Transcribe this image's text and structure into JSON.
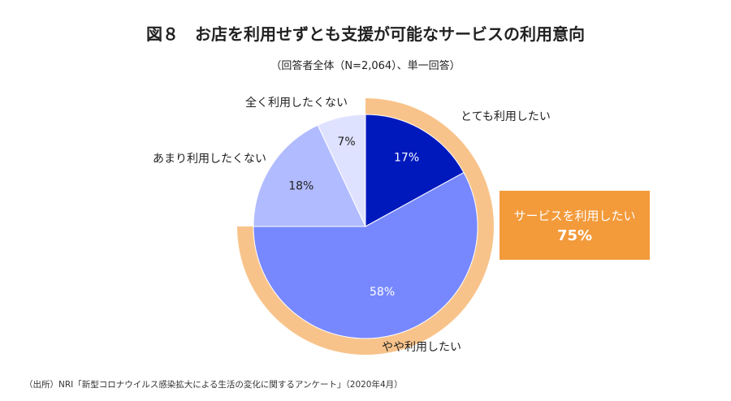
{
  "chart_data": {
    "type": "pie",
    "title": "図８　お店を利用せずとも支援が可能なサービスの利用意向",
    "subtitle": "（回答者全体（N=2,064）、単一回答）",
    "slices": [
      {
        "label": "とても利用したい",
        "value": 17,
        "value_label": "17%",
        "color": "#0019bd",
        "text_color": "#ffffff"
      },
      {
        "label": "やや利用したい",
        "value": 58,
        "value_label": "58%",
        "color": "#7788ff",
        "text_color": "#ffffff"
      },
      {
        "label": "あまり利用したくない",
        "value": 18,
        "value_label": "18%",
        "color": "#b1bbff",
        "text_color": "#222222"
      },
      {
        "label": "全く利用したくない",
        "value": 7,
        "value_label": "7%",
        "color": "#dfe2ff",
        "text_color": "#222222"
      }
    ],
    "highlight": {
      "label": "サービスを利用したい",
      "value": 75,
      "value_label": "75%",
      "ring_color": "#f8c38a",
      "box_color": "#f39a3a"
    },
    "source": "（出所）NRI「新型コロナウイルス感染拡大による生活の変化に関するアンケート」（2020年4月）"
  }
}
